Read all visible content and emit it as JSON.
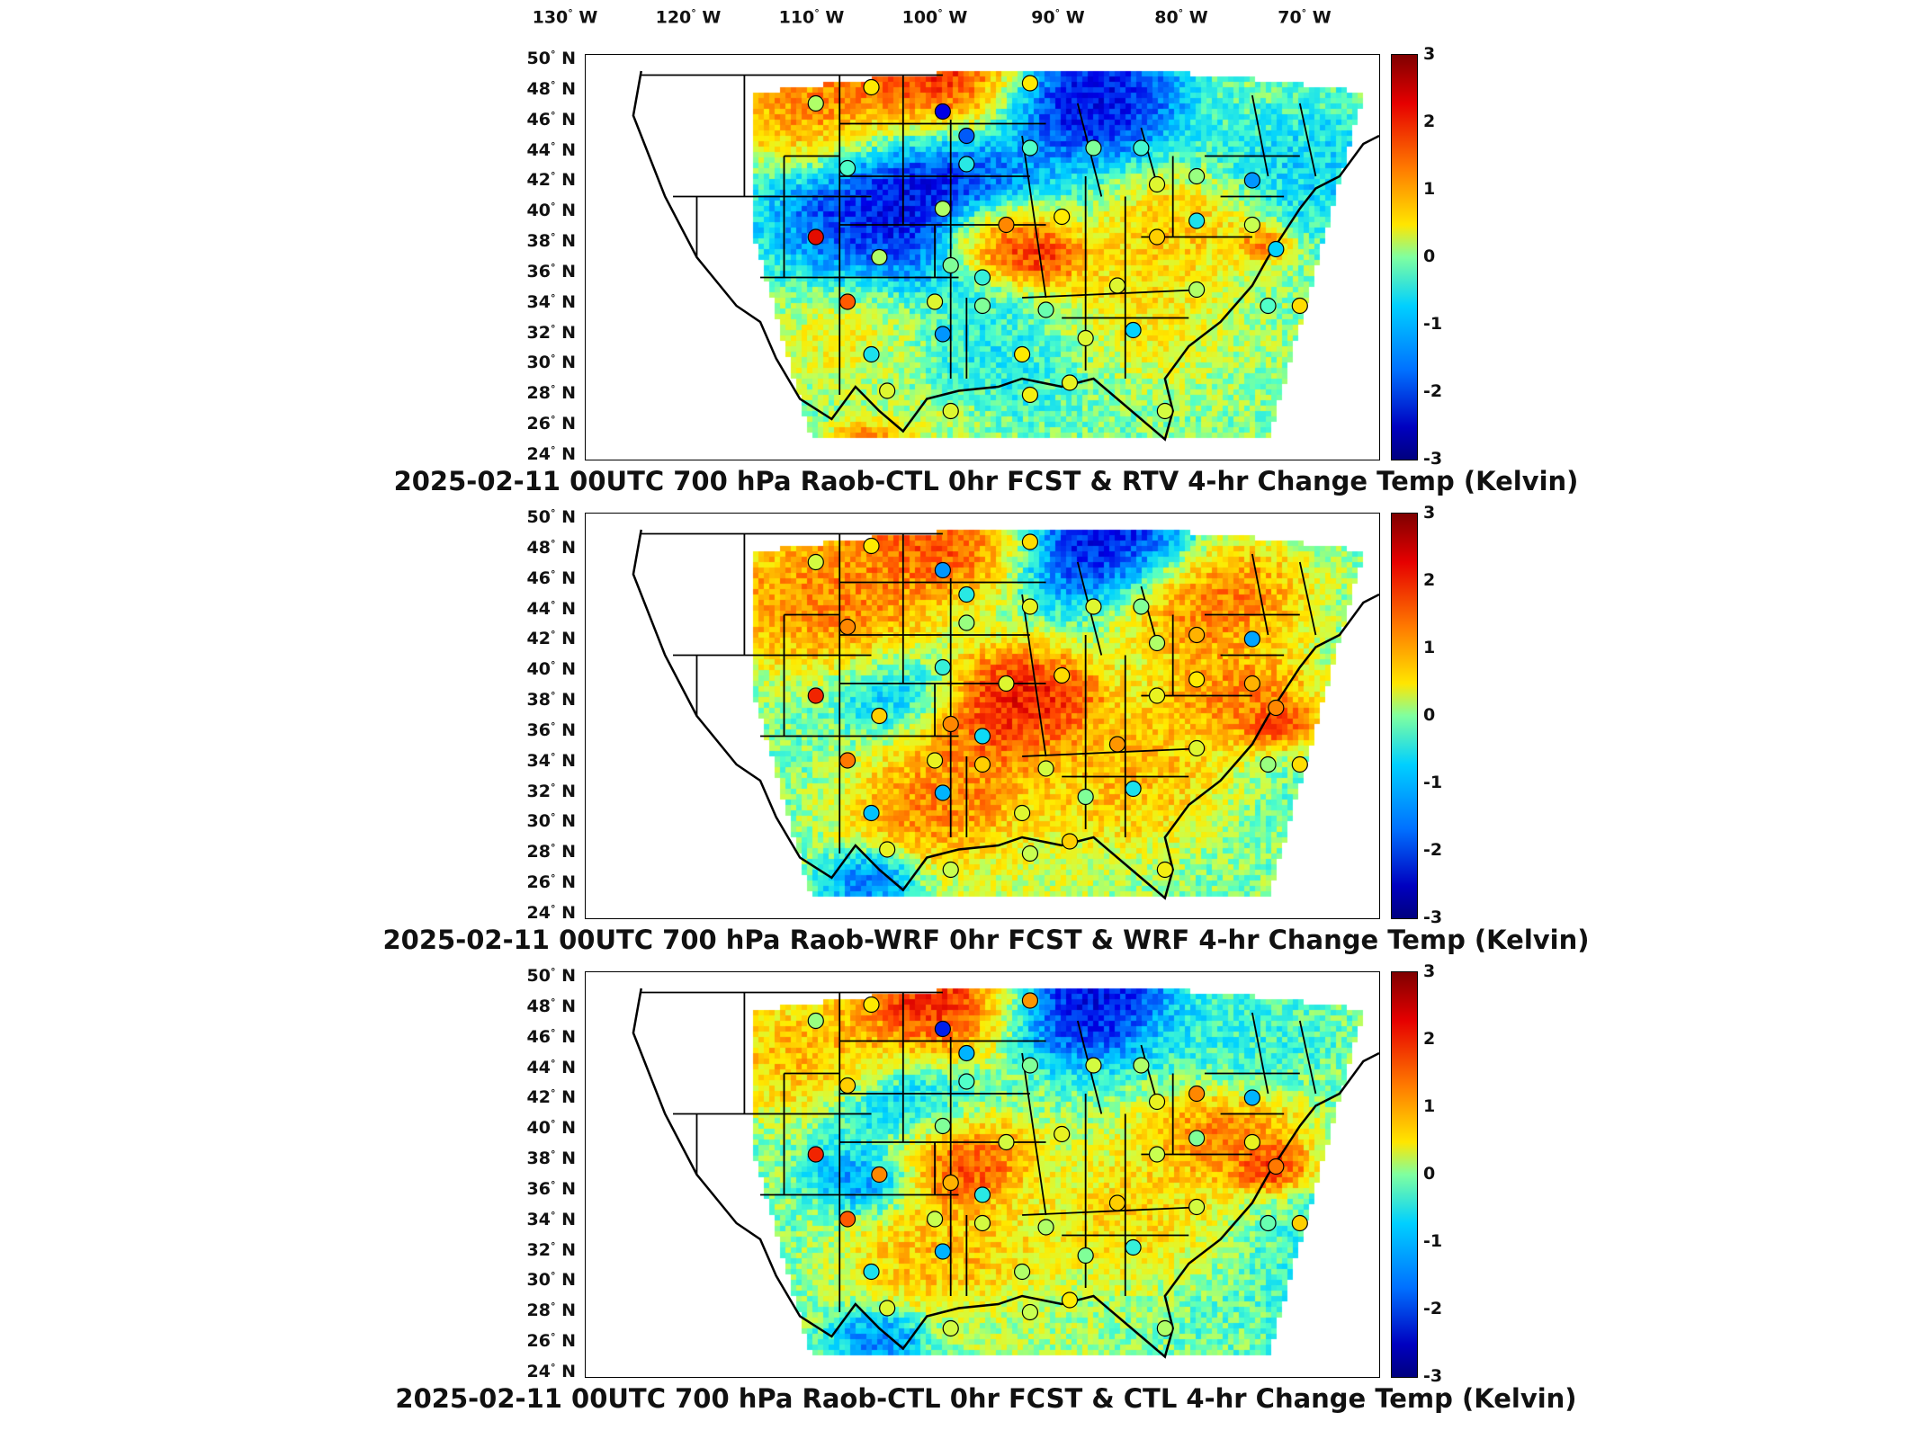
{
  "lon_labels": [
    "130",
    "120",
    "110",
    "100",
    "90",
    "80",
    "70"
  ],
  "lon_suffix": "W",
  "lat_labels": [
    "50",
    "48",
    "46",
    "44",
    "42",
    "40",
    "38",
    "36",
    "34",
    "32",
    "30",
    "28",
    "26",
    "24"
  ],
  "lat_suffix": "N",
  "colorbar_ticks": [
    "3",
    "2",
    "1",
    "0",
    "-1",
    "-2",
    "-3"
  ],
  "colorbar_units": "Kelvin",
  "panels": [
    {
      "title": "2025-02-11 00UTC 700 hPa Raob-CTL 0hr FCST & RTV 4-hr Change Temp (Kelvin)"
    },
    {
      "title": "2025-02-11 00UTC 700 hPa Raob-WRF 0hr FCST & WRF 4-hr Change Temp (Kelvin)"
    },
    {
      "title": "2025-02-11 00UTC 700 hPa Raob-CTL 0hr FCST & CTL 4-hr Change Temp (Kelvin)"
    }
  ],
  "colormap": [
    "#00007f",
    "#0000ff",
    "#00bfff",
    "#7fffa0",
    "#ffe600",
    "#ff7a00",
    "#e60000",
    "#7f0000"
  ]
}
